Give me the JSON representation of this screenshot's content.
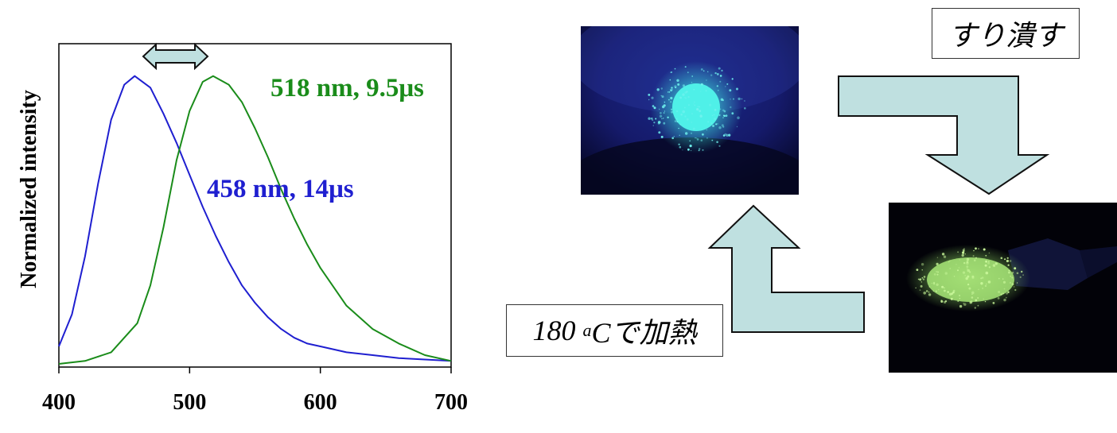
{
  "chart_data": {
    "type": "line",
    "ylabel": "Normalized intensity",
    "xlim": [
      400,
      700
    ],
    "ylim": [
      0,
      1
    ],
    "x_ticks": [
      "400",
      "500",
      "600",
      "700"
    ],
    "series": [
      {
        "name": "458 nm, 14μs",
        "color": "#1f1fd0",
        "x": [
          400,
          410,
          420,
          430,
          440,
          450,
          458,
          470,
          480,
          490,
          500,
          510,
          520,
          530,
          540,
          550,
          560,
          570,
          580,
          590,
          600,
          620,
          640,
          660,
          680,
          700
        ],
        "y": [
          0.06,
          0.17,
          0.37,
          0.62,
          0.84,
          0.96,
          0.99,
          0.95,
          0.86,
          0.76,
          0.65,
          0.54,
          0.44,
          0.35,
          0.27,
          0.21,
          0.16,
          0.12,
          0.09,
          0.07,
          0.06,
          0.04,
          0.03,
          0.02,
          0.015,
          0.01
        ]
      },
      {
        "name": "518 nm, 9.5μs",
        "color": "#1a8c1a",
        "x": [
          400,
          420,
          440,
          460,
          470,
          480,
          490,
          500,
          510,
          518,
          530,
          540,
          550,
          560,
          570,
          580,
          590,
          600,
          620,
          640,
          660,
          680,
          700
        ],
        "y": [
          0.0,
          0.01,
          0.04,
          0.14,
          0.27,
          0.47,
          0.7,
          0.87,
          0.97,
          0.99,
          0.96,
          0.9,
          0.81,
          0.71,
          0.6,
          0.5,
          0.41,
          0.33,
          0.2,
          0.12,
          0.07,
          0.03,
          0.01
        ]
      }
    ],
    "annotations": [
      "518 nm, 9.5μs",
      "458 nm, 14μs"
    ]
  },
  "labels": {
    "grind": "すり潰す",
    "heat_prefix": "180 ",
    "heat_sup": "a",
    "heat_suffix": "Cで加熱"
  },
  "colors": {
    "arrow_fill": "#bfe0e0",
    "arrow_stroke": "#111111",
    "blue_glow": "#3ee8e0",
    "green_glow": "#b8f07a"
  }
}
